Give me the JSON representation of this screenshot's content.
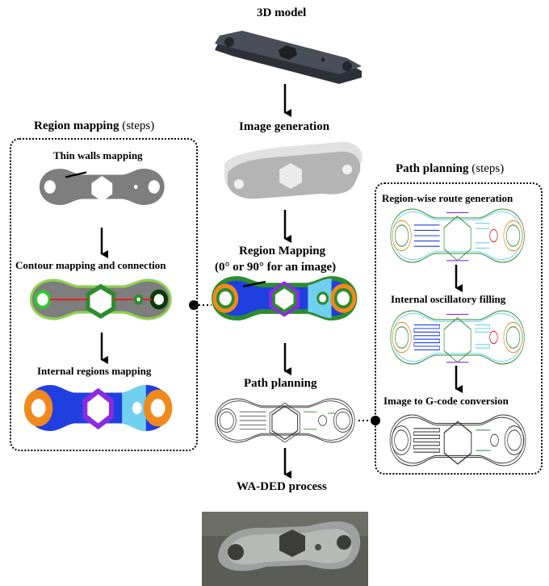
{
  "nodes": {
    "model": "3D model",
    "image_gen": "Image generation",
    "region_map_1": "Region Mapping",
    "region_map_2": "(0° or 90° for an image)",
    "path_plan": "Path planning",
    "process": "WA-DED process"
  },
  "left_panel": {
    "title": "Region mapping",
    "title_note": "(steps)",
    "steps": [
      "Thin walls mapping",
      "Contour mapping and connection",
      "Internal regions mapping"
    ]
  },
  "right_panel": {
    "title": "Path planning",
    "title_note": "(steps)",
    "steps": [
      "Region-wise route generation",
      "Internal oscillatory filling",
      "Image to G-code conversion"
    ]
  },
  "colors": {
    "contour_green": "#2e8b2e",
    "fill_blue": "#1f3fe0",
    "light_blue": "#6fd0f0",
    "orange": "#f08a1e",
    "purple": "#8a2be2",
    "red": "#e02020",
    "gray": "#808080",
    "dark": "#3a3d45"
  }
}
